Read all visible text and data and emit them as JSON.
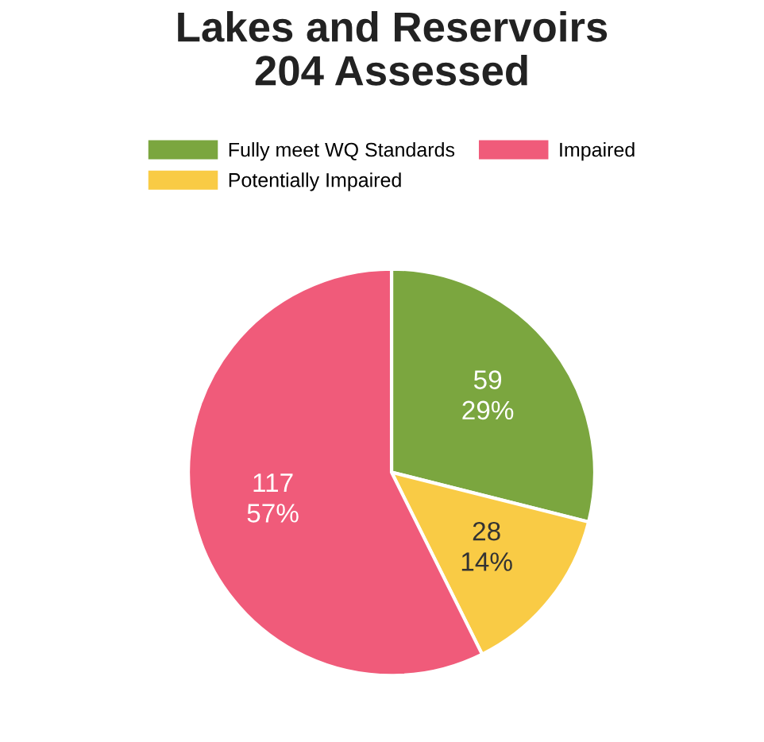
{
  "chart_data": {
    "type": "pie",
    "title": "Lakes and Reservoirs\n204 Assessed",
    "categories": [
      "Fully meet WQ Standards",
      "Potentially Impaired",
      "Impaired"
    ],
    "values": [
      59,
      28,
      117
    ],
    "colors": [
      "#7ba63f",
      "#f9cb45",
      "#f05b7a"
    ],
    "value_labels": [
      "59\n29%",
      "28\n14%",
      "117\n57%"
    ],
    "legend": "top"
  }
}
